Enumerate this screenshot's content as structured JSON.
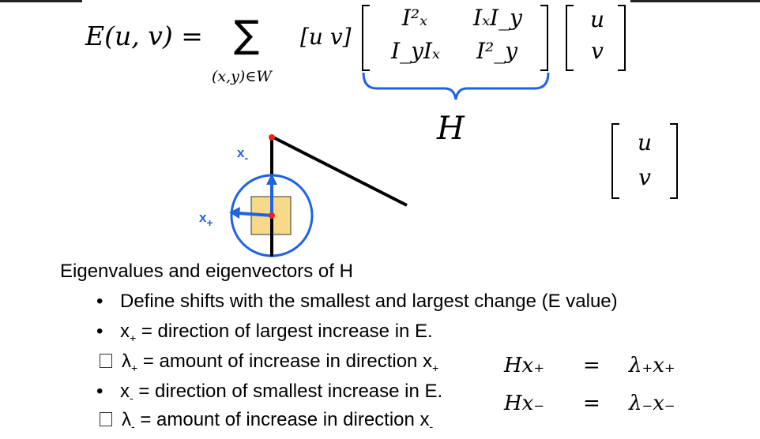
{
  "equation": {
    "lhs": "E(u, v) =",
    "sum_symbol": "∑",
    "sum_subscript": "(x,y)∈W",
    "row_vector": "[u v]",
    "matrix": [
      "I²ₓ",
      "IₓI_y",
      "I_yIₓ",
      "I²_y"
    ],
    "col_vector": [
      "u",
      "v"
    ],
    "brace_label": "H"
  },
  "side_vector": [
    "u",
    "v"
  ],
  "figure": {
    "label_minus": "x",
    "label_minus_sub": "-",
    "label_plus": "x",
    "label_plus_sub": "+",
    "colors": {
      "accent": "#1f63e0",
      "patch": "#f7d98a",
      "point": "#e8261d"
    }
  },
  "text": {
    "heading": "Eigenvalues and eigenvectors of H",
    "bullets": [
      {
        "marker": "•",
        "pre": "Define shifts with the smallest and largest change (E value)",
        "sub": "",
        "post": ""
      },
      {
        "marker": "•",
        "pre": "x",
        "sub": "+",
        "post": " = direction of largest increase in E."
      },
      {
        "marker": "box",
        "pre": "λ",
        "sub": "+",
        "post": " = amount of increase in direction x",
        "post_sub": "+"
      },
      {
        "marker": "•",
        "pre": "x",
        "sub": "-",
        "post": " = direction of smallest increase in E."
      },
      {
        "marker": "box",
        "pre": "λ",
        "sub": "-",
        "post": " = amount of increase in direction x",
        "post_sub": "-"
      }
    ]
  },
  "eigen_equations": [
    {
      "lhs": "Hx₊",
      "eq": "=",
      "rhs": "λ₊x₊"
    },
    {
      "lhs": "Hx₋",
      "eq": "=",
      "rhs": "λ₋x₋"
    }
  ]
}
